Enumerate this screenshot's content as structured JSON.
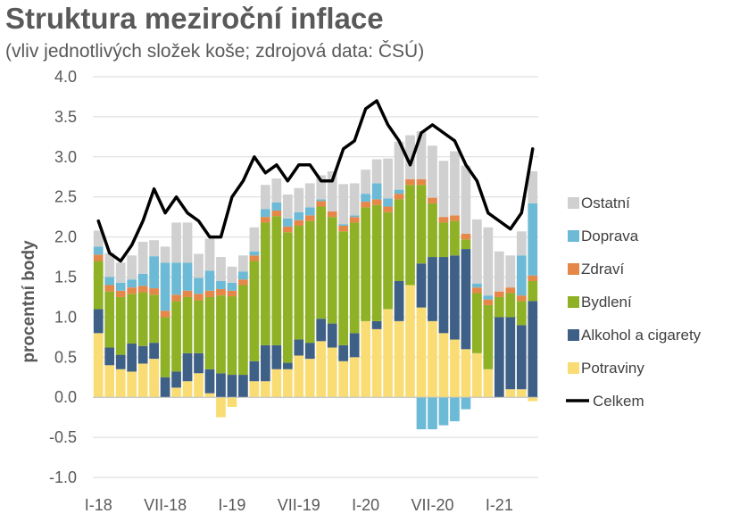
{
  "chart_data": {
    "type": "bar",
    "stacked": true,
    "title": "Struktura meziroční inflace",
    "subtitle": "(vliv jednotlivých složek koše; zdrojová data: ČSÚ)",
    "ylabel": "procentní body",
    "ylim": [
      -1.0,
      4.0
    ],
    "yticks": [
      "4.0",
      "3.5",
      "3.0",
      "2.5",
      "2.0",
      "1.5",
      "1.0",
      "0.5",
      "0.0",
      "-0.5",
      "-1.0"
    ],
    "xtick_labels": [
      "I-18",
      "VII-18",
      "I-19",
      "VII-19",
      "I-20",
      "VII-20",
      "I-21"
    ],
    "categories": [
      "I-18",
      "II-18",
      "III-18",
      "IV-18",
      "V-18",
      "VI-18",
      "VII-18",
      "VIII-18",
      "IX-18",
      "X-18",
      "XI-18",
      "XII-18",
      "I-19",
      "II-19",
      "III-19",
      "IV-19",
      "V-19",
      "VI-19",
      "VII-19",
      "VIII-19",
      "IX-19",
      "X-19",
      "XI-19",
      "XII-19",
      "I-20",
      "II-20",
      "III-20",
      "IV-20",
      "V-20",
      "VI-20",
      "VII-20",
      "VIII-20",
      "IX-20",
      "X-20",
      "XI-20",
      "XII-20",
      "I-21",
      "II-21",
      "III-21",
      "IV-21"
    ],
    "series": [
      {
        "name": "Potraviny",
        "color": "#F9DD74",
        "values": [
          0.8,
          0.4,
          0.35,
          0.32,
          0.42,
          0.48,
          0.0,
          0.12,
          0.2,
          0.3,
          0.05,
          -0.25,
          -0.12,
          0.0,
          0.2,
          0.2,
          0.35,
          0.35,
          0.52,
          0.48,
          0.7,
          0.62,
          0.45,
          0.5,
          0.95,
          0.85,
          1.1,
          0.95,
          1.4,
          1.12,
          0.95,
          0.8,
          0.72,
          0.6,
          0.55,
          0.35,
          0.0,
          0.1,
          0.1,
          -0.05
        ]
      },
      {
        "name": "Alkohol a cigarety",
        "color": "#3E5F86",
        "values": [
          0.3,
          0.22,
          0.18,
          0.35,
          0.22,
          0.2,
          0.25,
          0.2,
          0.35,
          0.25,
          0.3,
          0.3,
          0.28,
          0.28,
          0.25,
          0.45,
          0.3,
          0.08,
          0.2,
          0.2,
          0.28,
          0.3,
          0.2,
          0.3,
          0.0,
          0.1,
          0.0,
          0.5,
          0.0,
          0.55,
          0.8,
          0.95,
          1.05,
          1.25,
          0.0,
          0.0,
          1.0,
          0.9,
          0.8,
          1.2
        ]
      },
      {
        "name": "Bydlení",
        "color": "#8EB125",
        "values": [
          0.6,
          0.7,
          0.72,
          0.62,
          0.67,
          0.6,
          0.75,
          0.88,
          0.7,
          0.66,
          0.9,
          0.97,
          0.98,
          1.12,
          1.25,
          1.53,
          1.61,
          1.63,
          1.42,
          1.52,
          1.4,
          1.33,
          1.42,
          1.38,
          1.42,
          1.45,
          1.21,
          1.02,
          1.25,
          0.98,
          0.67,
          0.43,
          0.43,
          0.12,
          0.75,
          0.8,
          0.25,
          0.3,
          0.3,
          0.25
        ]
      },
      {
        "name": "Zdraví",
        "color": "#E6874A",
        "values": [
          0.08,
          0.08,
          0.08,
          0.08,
          0.08,
          0.08,
          0.08,
          0.08,
          0.08,
          0.08,
          0.08,
          0.08,
          0.07,
          0.07,
          0.07,
          0.07,
          0.07,
          0.07,
          0.07,
          0.07,
          0.07,
          0.07,
          0.07,
          0.07,
          0.07,
          0.07,
          0.07,
          0.07,
          0.07,
          0.07,
          0.07,
          0.07,
          0.07,
          0.07,
          0.07,
          0.07,
          0.07,
          0.07,
          0.07,
          0.07
        ]
      },
      {
        "name": "Doprava",
        "color": "#6CBAD6",
        "values": [
          0.1,
          0.1,
          0.1,
          0.1,
          0.15,
          0.4,
          0.6,
          0.4,
          0.35,
          0.2,
          0.25,
          0.1,
          0.1,
          0.1,
          0.05,
          0.1,
          0.1,
          0.1,
          0.1,
          0.1,
          0.02,
          0.0,
          0.02,
          0.02,
          0.1,
          0.2,
          0.1,
          0.05,
          0.0,
          -0.4,
          -0.4,
          -0.35,
          -0.3,
          -0.15,
          0.05,
          0.05,
          0.0,
          0.0,
          0.5,
          0.9
        ]
      },
      {
        "name": "Ostatní",
        "color": "#D0D0D0",
        "values": [
          0.2,
          0.3,
          0.25,
          0.3,
          0.4,
          0.2,
          0.2,
          0.5,
          0.5,
          0.3,
          0.4,
          0.3,
          0.2,
          0.2,
          0.3,
          0.3,
          0.3,
          0.3,
          0.3,
          0.3,
          0.3,
          0.5,
          0.5,
          0.4,
          0.3,
          0.3,
          0.5,
          0.6,
          0.55,
          0.6,
          0.65,
          0.7,
          0.8,
          0.85,
          0.8,
          0.85,
          0.5,
          0.4,
          0.3,
          0.4
        ]
      },
      {
        "name": "Celkem",
        "color": "#000000",
        "type": "line",
        "values": [
          2.2,
          1.8,
          1.7,
          1.9,
          2.2,
          2.6,
          2.3,
          2.5,
          2.3,
          2.2,
          2.0,
          2.0,
          2.5,
          2.7,
          3.0,
          2.8,
          2.9,
          2.7,
          2.9,
          2.9,
          2.7,
          2.7,
          3.1,
          3.2,
          3.6,
          3.7,
          3.4,
          3.2,
          2.9,
          3.3,
          3.4,
          3.3,
          3.2,
          2.9,
          2.7,
          2.3,
          2.2,
          2.1,
          2.3,
          3.1
        ]
      }
    ],
    "legend_position": "right",
    "grid": true
  }
}
